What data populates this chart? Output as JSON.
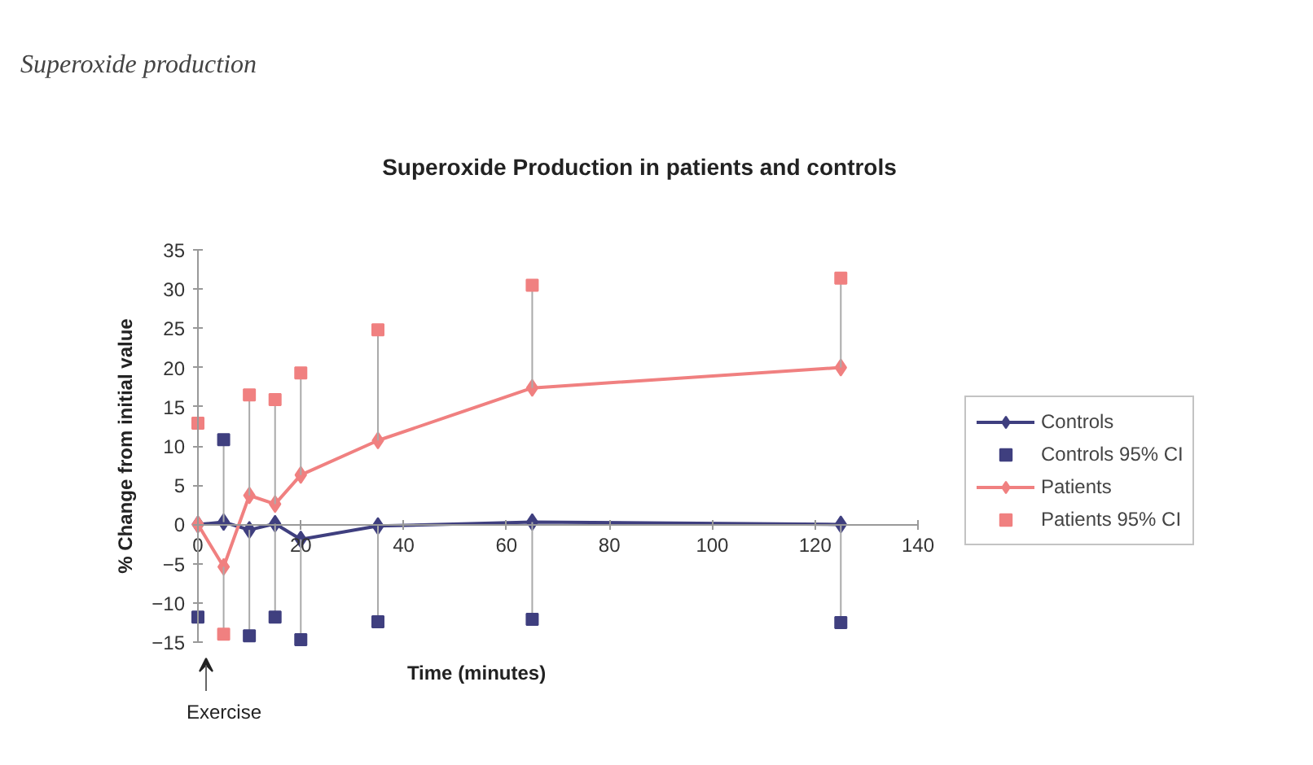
{
  "chart_data": {
    "type": "line",
    "subtitle": "Superoxide production",
    "title": "Superoxide Production in patients and controls",
    "xlabel": "Time (minutes)",
    "ylabel": "% Change from initial value",
    "xlim": [
      0,
      140
    ],
    "xticks": [
      0,
      20,
      40,
      60,
      80,
      100,
      120,
      140
    ],
    "ylim": [
      -15,
      35
    ],
    "yticks": [
      -15,
      -10,
      -5,
      0,
      5,
      10,
      15,
      20,
      25,
      30,
      35
    ],
    "grid": false,
    "legend": "right",
    "marker": "diamond",
    "line_style": "solid",
    "series": [
      {
        "name": "Controls",
        "color": "#3f3f7f",
        "x": [
          0,
          5,
          10,
          15,
          20,
          35,
          65,
          125
        ],
        "values": [
          0,
          0.3,
          -0.7,
          0.1,
          -1.9,
          -0.2,
          0.3,
          0
        ]
      },
      {
        "name": "Controls 95% CI",
        "type": "scatter",
        "marker": "square",
        "color": "#3f3f7f",
        "x": [
          0,
          5,
          10,
          15,
          20,
          35,
          65,
          125
        ],
        "values": [
          -11.8,
          10.8,
          -14.2,
          -11.8,
          -14.7,
          -12.4,
          -12.1,
          -12.5
        ],
        "errors": [
          [
            -11.8,
            0
          ],
          [
            0.3,
            10.8
          ],
          [
            -14.2,
            -0.7
          ],
          [
            -11.8,
            0.1
          ],
          [
            -14.7,
            -1.9
          ],
          [
            -12.4,
            -0.2
          ],
          [
            -12.1,
            0.3
          ],
          [
            -12.5,
            0
          ]
        ]
      },
      {
        "name": "Patients",
        "color": "#f08080",
        "x": [
          0,
          5,
          10,
          15,
          20,
          35,
          65,
          125
        ],
        "values": [
          0,
          -5.4,
          3.7,
          2.6,
          6.3,
          10.7,
          17.4,
          20.0
        ]
      },
      {
        "name": "Patients 95% CI",
        "type": "scatter",
        "marker": "square",
        "color": "#f08080",
        "x": [
          0,
          5,
          10,
          15,
          20,
          35,
          65,
          125
        ],
        "values": [
          12.9,
          -14.0,
          16.5,
          15.9,
          19.3,
          24.8,
          30.5,
          31.4
        ],
        "errors": [
          [
            0,
            12.9
          ],
          [
            -14.0,
            -5.4
          ],
          [
            3.7,
            16.5
          ],
          [
            2.6,
            15.9
          ],
          [
            6.3,
            19.3
          ],
          [
            10.7,
            24.8
          ],
          [
            17.4,
            30.5
          ],
          [
            20.0,
            31.4
          ]
        ]
      }
    ],
    "annotations": [
      "Exercise"
    ]
  }
}
